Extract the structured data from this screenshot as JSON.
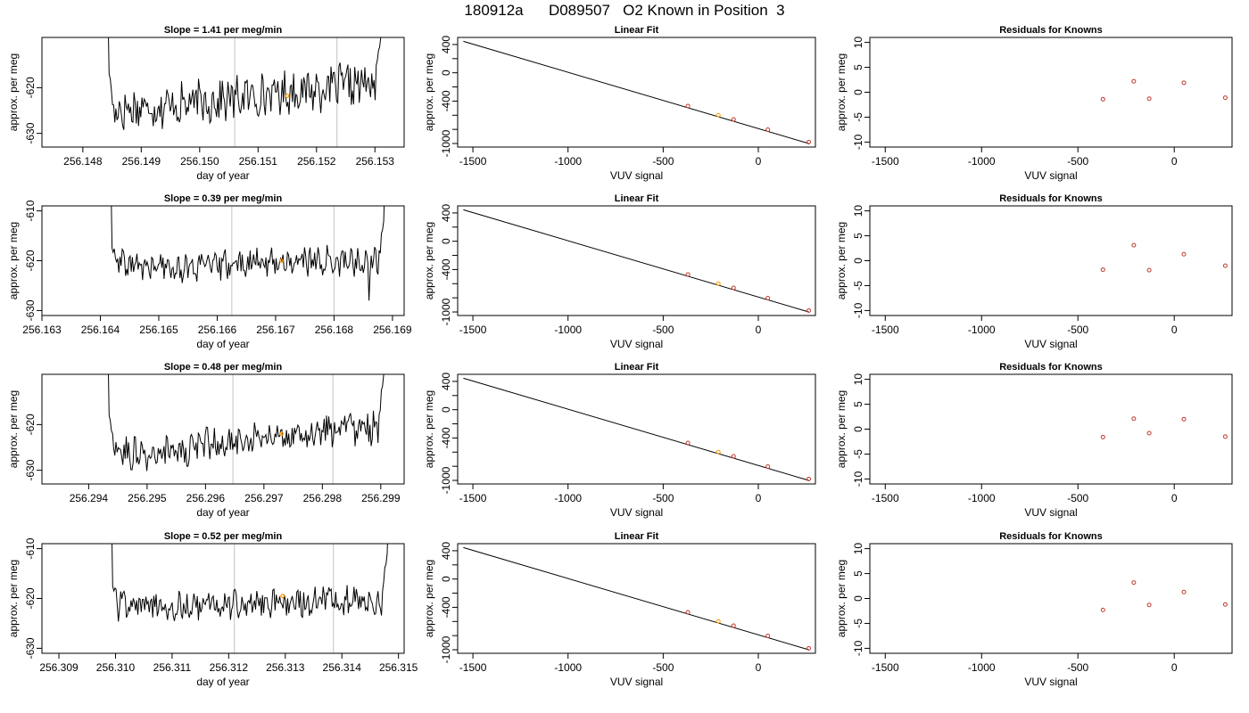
{
  "main_title": "180912a      D089507   O2 Known in Position  3",
  "colors": {
    "trace": "#000000",
    "known_point": "#c0392b",
    "highlight_point": "#ff9900",
    "marker_line": "#cccccc",
    "fit_line": "#000000"
  },
  "chart_data": [
    {
      "row": 1,
      "panel": "time-series",
      "type": "line",
      "title": "Slope =  1.41  per meg/min",
      "xlabel": "day of year",
      "ylabel": "approx. per meg",
      "xlim": [
        256.1473,
        256.1535
      ],
      "ylim": [
        -633,
        -609
      ],
      "xticks": [
        "256.148",
        "256.149",
        "256.150",
        "256.151",
        "256.152",
        "256.153"
      ],
      "yticks": [
        "-630",
        "-620"
      ],
      "vlines": [
        256.1506,
        256.15235
      ],
      "highlight": {
        "x": 256.1515,
        "y": -621.8
      },
      "x_start": 256.14845,
      "x_end": 256.1531,
      "amp": 4.0,
      "rise_base": -619,
      "trend": [
        -625.0,
        -624.3,
        -623.8,
        -623.0,
        -622.0,
        -621.2,
        -620.4,
        -619.6,
        -619.0
      ],
      "y_start": -617.0,
      "y_end": -609.0
    },
    {
      "row": 1,
      "panel": "linear-fit",
      "type": "scatter",
      "title": "Linear Fit",
      "xlabel": "VUV signal",
      "ylabel": "approx. per meg",
      "xlim": [
        -1580,
        300
      ],
      "ylim": [
        -1050,
        500
      ],
      "xticks": [
        "-1500",
        "-1000",
        "-500",
        "0"
      ],
      "yticks": [
        "400",
        "0",
        "-400",
        "-1000"
      ],
      "fit_line": {
        "x": [
          -1550,
          265
        ],
        "y": [
          445,
          -1000
        ]
      },
      "points": {
        "x": [
          -370,
          -210,
          -130,
          50,
          265
        ],
        "y": [
          -470,
          -600,
          -660,
          -805,
          -980
        ]
      },
      "highlight_index": 1
    },
    {
      "row": 1,
      "panel": "residuals",
      "type": "scatter",
      "title": "Residuals for Knowns",
      "xlabel": "VUV signal",
      "ylabel": "",
      "xlim": [
        -1580,
        300
      ],
      "ylim": [
        -11,
        11
      ],
      "xticks": [
        "-1500",
        "-1000",
        "-500",
        "0"
      ],
      "yticks": [
        "10",
        "5",
        "0",
        "-5",
        "-10"
      ],
      "points": {
        "x": [
          -370,
          -210,
          -130,
          50,
          265
        ],
        "y": [
          -1.4,
          2.2,
          -1.3,
          1.9,
          -1.1
        ]
      }
    },
    {
      "row": 2,
      "panel": "time-series",
      "type": "line",
      "title": "Slope =  0.39  per meg/min",
      "xlabel": "day of year",
      "ylabel": "approx. per meg",
      "xlim": [
        256.163,
        256.1692
      ],
      "ylim": [
        -631,
        -609
      ],
      "xticks": [
        "256.163",
        "256.164",
        "256.165",
        "256.166",
        "256.167",
        "256.168",
        "256.169"
      ],
      "yticks": [
        "-610",
        "-620",
        "-630"
      ],
      "vlines": [
        256.16625,
        256.168
      ],
      "highlight": {
        "x": 256.1671,
        "y": -620.0
      },
      "x_start": 256.1642,
      "x_end": 256.16885,
      "amp": 2.4,
      "rise_base": -617,
      "trend": [
        -620.5,
        -621.3,
        -621.6,
        -621.0,
        -620.5,
        -620.2,
        -620.0,
        -620.2,
        -620.4
      ],
      "y_start": -617.5,
      "y_end": -612.0,
      "spike": {
        "x": 256.1686,
        "y": -628.0
      }
    },
    {
      "row": 2,
      "panel": "linear-fit",
      "type": "scatter",
      "title": "Linear Fit",
      "xlabel": "VUV signal",
      "ylabel": "approx. per meg",
      "xlim": [
        -1580,
        300
      ],
      "ylim": [
        -1050,
        500
      ],
      "xticks": [
        "-1500",
        "-1000",
        "-500",
        "0"
      ],
      "yticks": [
        "400",
        "0",
        "-400",
        "-1000"
      ],
      "fit_line": {
        "x": [
          -1550,
          265
        ],
        "y": [
          445,
          -1000
        ]
      },
      "points": {
        "x": [
          -370,
          -210,
          -130,
          50,
          265
        ],
        "y": [
          -470,
          -600,
          -660,
          -805,
          -980
        ]
      },
      "highlight_index": 1
    },
    {
      "row": 2,
      "panel": "residuals",
      "type": "scatter",
      "title": "Residuals for Knowns",
      "xlabel": "VUV signal",
      "ylabel": "",
      "xlim": [
        -1580,
        300
      ],
      "ylim": [
        -11,
        11
      ],
      "xticks": [
        "-1500",
        "-1000",
        "-500",
        "0"
      ],
      "yticks": [
        "10",
        "5",
        "0",
        "-5",
        "-10"
      ],
      "points": {
        "x": [
          -370,
          -210,
          -130,
          50,
          265
        ],
        "y": [
          -1.8,
          3.1,
          -1.9,
          1.3,
          -1.0
        ]
      }
    },
    {
      "row": 3,
      "panel": "time-series",
      "type": "line",
      "title": "Slope =  0.48  per meg/min",
      "xlabel": "day of year",
      "ylabel": "approx. per meg",
      "xlim": [
        256.2932,
        256.2994
      ],
      "ylim": [
        -633,
        -609
      ],
      "xticks": [
        "256.294",
        "256.295",
        "256.296",
        "256.297",
        "256.298",
        "256.299"
      ],
      "yticks": [
        "-630",
        "-620"
      ],
      "vlines": [
        256.29647,
        256.29818
      ],
      "highlight": {
        "x": 256.2973,
        "y": -622.0
      },
      "x_start": 256.29435,
      "x_end": 256.29905,
      "amp": 3.2,
      "rise_base": -618,
      "trend": [
        -625.0,
        -627.0,
        -625.8,
        -624.5,
        -623.3,
        -622.3,
        -621.6,
        -621.0,
        -620.5
      ],
      "y_start": -618.0,
      "y_end": -609.0
    },
    {
      "row": 3,
      "panel": "linear-fit",
      "type": "scatter",
      "title": "Linear Fit",
      "xlabel": "VUV signal",
      "ylabel": "approx. per meg",
      "xlim": [
        -1580,
        300
      ],
      "ylim": [
        -1050,
        500
      ],
      "xticks": [
        "-1500",
        "-1000",
        "-500",
        "0"
      ],
      "yticks": [
        "400",
        "0",
        "-400",
        "-1000"
      ],
      "fit_line": {
        "x": [
          -1550,
          265
        ],
        "y": [
          445,
          -1000
        ]
      },
      "points": {
        "x": [
          -370,
          -210,
          -130,
          50,
          265
        ],
        "y": [
          -470,
          -600,
          -660,
          -805,
          -980
        ]
      },
      "highlight_index": 1
    },
    {
      "row": 3,
      "panel": "residuals",
      "type": "scatter",
      "title": "Residuals for Knowns",
      "xlabel": "VUV signal",
      "ylabel": "",
      "xlim": [
        -1580,
        300
      ],
      "ylim": [
        -11,
        11
      ],
      "xticks": [
        "-1500",
        "-1000",
        "-500",
        "0"
      ],
      "yticks": [
        "10",
        "5",
        "0",
        "-5",
        "-10"
      ],
      "points": {
        "x": [
          -370,
          -210,
          -130,
          50,
          265
        ],
        "y": [
          -1.6,
          2.1,
          -0.8,
          2.0,
          -1.5
        ]
      }
    },
    {
      "row": 4,
      "panel": "time-series",
      "type": "line",
      "title": "Slope =  0.52  per meg/min",
      "xlabel": "day of year",
      "ylabel": "approx. per meg",
      "xlim": [
        256.3087,
        256.3151
      ],
      "ylim": [
        -631,
        -609
      ],
      "xticks": [
        "256.309",
        "256.310",
        "256.311",
        "256.312",
        "256.313",
        "256.314",
        "256.315"
      ],
      "yticks": [
        "-610",
        "-620",
        "-630"
      ],
      "vlines": [
        256.3121,
        256.31385
      ],
      "highlight": {
        "x": 256.31295,
        "y": -619.5
      },
      "x_start": 256.30995,
      "x_end": 256.3148,
      "amp": 2.6,
      "rise_base": -617,
      "trend": [
        -621.0,
        -621.8,
        -621.6,
        -621.4,
        -621.1,
        -620.8,
        -620.5,
        -620.4,
        -620.4
      ],
      "y_start": -617.5,
      "y_end": -611.0
    },
    {
      "row": 4,
      "panel": "linear-fit",
      "type": "scatter",
      "title": "Linear Fit",
      "xlabel": "VUV signal",
      "ylabel": "approx. per meg",
      "xlim": [
        -1580,
        300
      ],
      "ylim": [
        -1050,
        500
      ],
      "xticks": [
        "-1500",
        "-1000",
        "-500",
        "0"
      ],
      "yticks": [
        "400",
        "0",
        "-400",
        "-1000"
      ],
      "fit_line": {
        "x": [
          -1550,
          265
        ],
        "y": [
          445,
          -1000
        ]
      },
      "points": {
        "x": [
          -370,
          -210,
          -130,
          50,
          265
        ],
        "y": [
          -470,
          -600,
          -660,
          -805,
          -980
        ]
      },
      "highlight_index": 1
    },
    {
      "row": 4,
      "panel": "residuals",
      "type": "scatter",
      "title": "Residuals for Knowns",
      "xlabel": "VUV signal",
      "ylabel": "",
      "xlim": [
        -1580,
        300
      ],
      "ylim": [
        -11,
        11
      ],
      "xticks": [
        "-1500",
        "-1000",
        "-500",
        "0"
      ],
      "yticks": [
        "10",
        "5",
        "0",
        "-5",
        "-10"
      ],
      "points": {
        "x": [
          -370,
          -210,
          -130,
          50,
          265
        ],
        "y": [
          -2.3,
          3.2,
          -1.3,
          1.3,
          -1.2
        ]
      }
    }
  ]
}
